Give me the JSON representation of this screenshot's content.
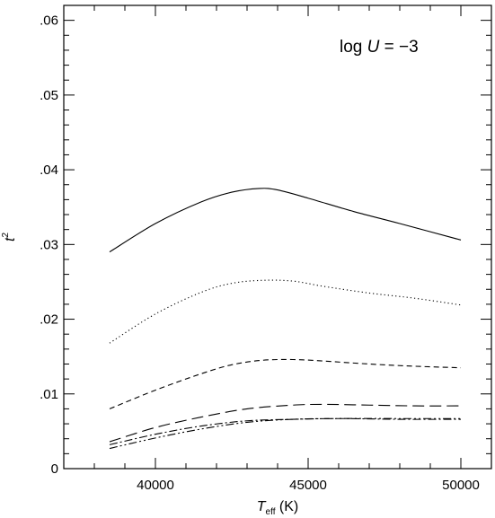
{
  "chart_data": {
    "type": "line",
    "title": "",
    "annotation": {
      "prefix": "log ",
      "variable": "U",
      "suffix": " = −3"
    },
    "xlabel": {
      "symbol": "T",
      "subscript": "eff",
      "unit": " (K)"
    },
    "ylabel": {
      "symbol": "t",
      "superscript": "2"
    },
    "xlim": [
      37000,
      51000
    ],
    "ylim": [
      0,
      0.062
    ],
    "x_ticks": [
      40000,
      45000,
      50000
    ],
    "x_tick_labels": [
      "40000",
      "45000",
      "50000"
    ],
    "y_ticks": [
      0,
      0.01,
      0.02,
      0.03,
      0.04,
      0.05,
      0.06
    ],
    "y_tick_labels": [
      "0",
      ".01",
      ".02",
      ".03",
      ".04",
      ".05",
      ".06"
    ],
    "grid": false,
    "legend": "none",
    "series": [
      {
        "style": "solid",
        "color": "#000000",
        "points": [
          [
            38500,
            0.029
          ],
          [
            40000,
            0.0328
          ],
          [
            41500,
            0.0357
          ],
          [
            42500,
            0.037
          ],
          [
            43400,
            0.0375
          ],
          [
            44000,
            0.0373
          ],
          [
            45000,
            0.0362
          ],
          [
            46500,
            0.0344
          ],
          [
            48000,
            0.0328
          ],
          [
            50000,
            0.0306
          ]
        ]
      },
      {
        "style": "dotted",
        "color": "#000000",
        "points": [
          [
            38500,
            0.0168
          ],
          [
            40000,
            0.0207
          ],
          [
            41500,
            0.0236
          ],
          [
            42500,
            0.0248
          ],
          [
            43500,
            0.0252
          ],
          [
            44500,
            0.0251
          ],
          [
            45500,
            0.0244
          ],
          [
            47000,
            0.0235
          ],
          [
            48500,
            0.0228
          ],
          [
            50000,
            0.0219
          ]
        ]
      },
      {
        "style": "dashed",
        "color": "#000000",
        "points": [
          [
            38500,
            0.008
          ],
          [
            40000,
            0.0105
          ],
          [
            41500,
            0.0127
          ],
          [
            42500,
            0.0139
          ],
          [
            43500,
            0.0145
          ],
          [
            44500,
            0.0146
          ],
          [
            45500,
            0.0144
          ],
          [
            47000,
            0.014
          ],
          [
            48500,
            0.0137
          ],
          [
            50000,
            0.0135
          ]
        ]
      },
      {
        "style": "long-dashed",
        "color": "#000000",
        "points": [
          [
            38500,
            0.0036
          ],
          [
            40000,
            0.0055
          ],
          [
            41500,
            0.0069
          ],
          [
            43000,
            0.008
          ],
          [
            44500,
            0.0085
          ],
          [
            45500,
            0.0086
          ],
          [
            47000,
            0.0085
          ],
          [
            48500,
            0.0084
          ],
          [
            50000,
            0.0084
          ]
        ]
      },
      {
        "style": "dash-dot",
        "color": "#000000",
        "points": [
          [
            38500,
            0.0032
          ],
          [
            40000,
            0.0046
          ],
          [
            41500,
            0.0057
          ],
          [
            43000,
            0.0064
          ],
          [
            44500,
            0.0066
          ],
          [
            46000,
            0.0067
          ],
          [
            48000,
            0.0066
          ],
          [
            50000,
            0.0066
          ]
        ]
      },
      {
        "style": "dash-dot-dot",
        "color": "#000000",
        "points": [
          [
            38500,
            0.0027
          ],
          [
            40000,
            0.0041
          ],
          [
            41500,
            0.0053
          ],
          [
            43000,
            0.0062
          ],
          [
            44500,
            0.0066
          ],
          [
            46000,
            0.0067
          ],
          [
            48000,
            0.0067
          ],
          [
            50000,
            0.0067
          ]
        ]
      }
    ]
  }
}
